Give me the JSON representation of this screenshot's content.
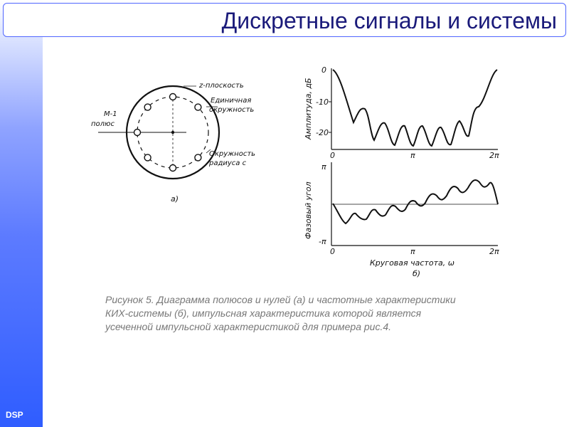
{
  "title": "Дискретные сигналы и системы",
  "footer_label": "DSP",
  "diagram_a": {
    "z_plane_label": "z-плоскость",
    "unit_circle_label": [
      "Единичная",
      "окружность"
    ],
    "pole_label": [
      "M-1",
      "полюс"
    ],
    "radius_circle_label": [
      "Окружность",
      "радиуса c"
    ],
    "panel_label": "а)",
    "zero_count": 7
  },
  "diagram_b": {
    "amplitude_axis_label": "Амплитуда, дБ",
    "amplitude_ticks": [
      "0",
      "-10",
      "-20"
    ],
    "phase_axis_label": "Фазовый угол",
    "phase_ticks": [
      "π",
      "-π"
    ],
    "x_ticks": [
      "0",
      "π",
      "2π"
    ],
    "x_axis_label": "Круговая частота, ω",
    "panel_label": "б)"
  },
  "caption_lines": [
    "Рисунок 5. Диаграмма полюсов и нулей (а) и частотные характеристики",
    "КИХ-системы (б), импульсная характеристика которой является",
    "усеченной импульсной характеристикой для примера рис.4."
  ]
}
